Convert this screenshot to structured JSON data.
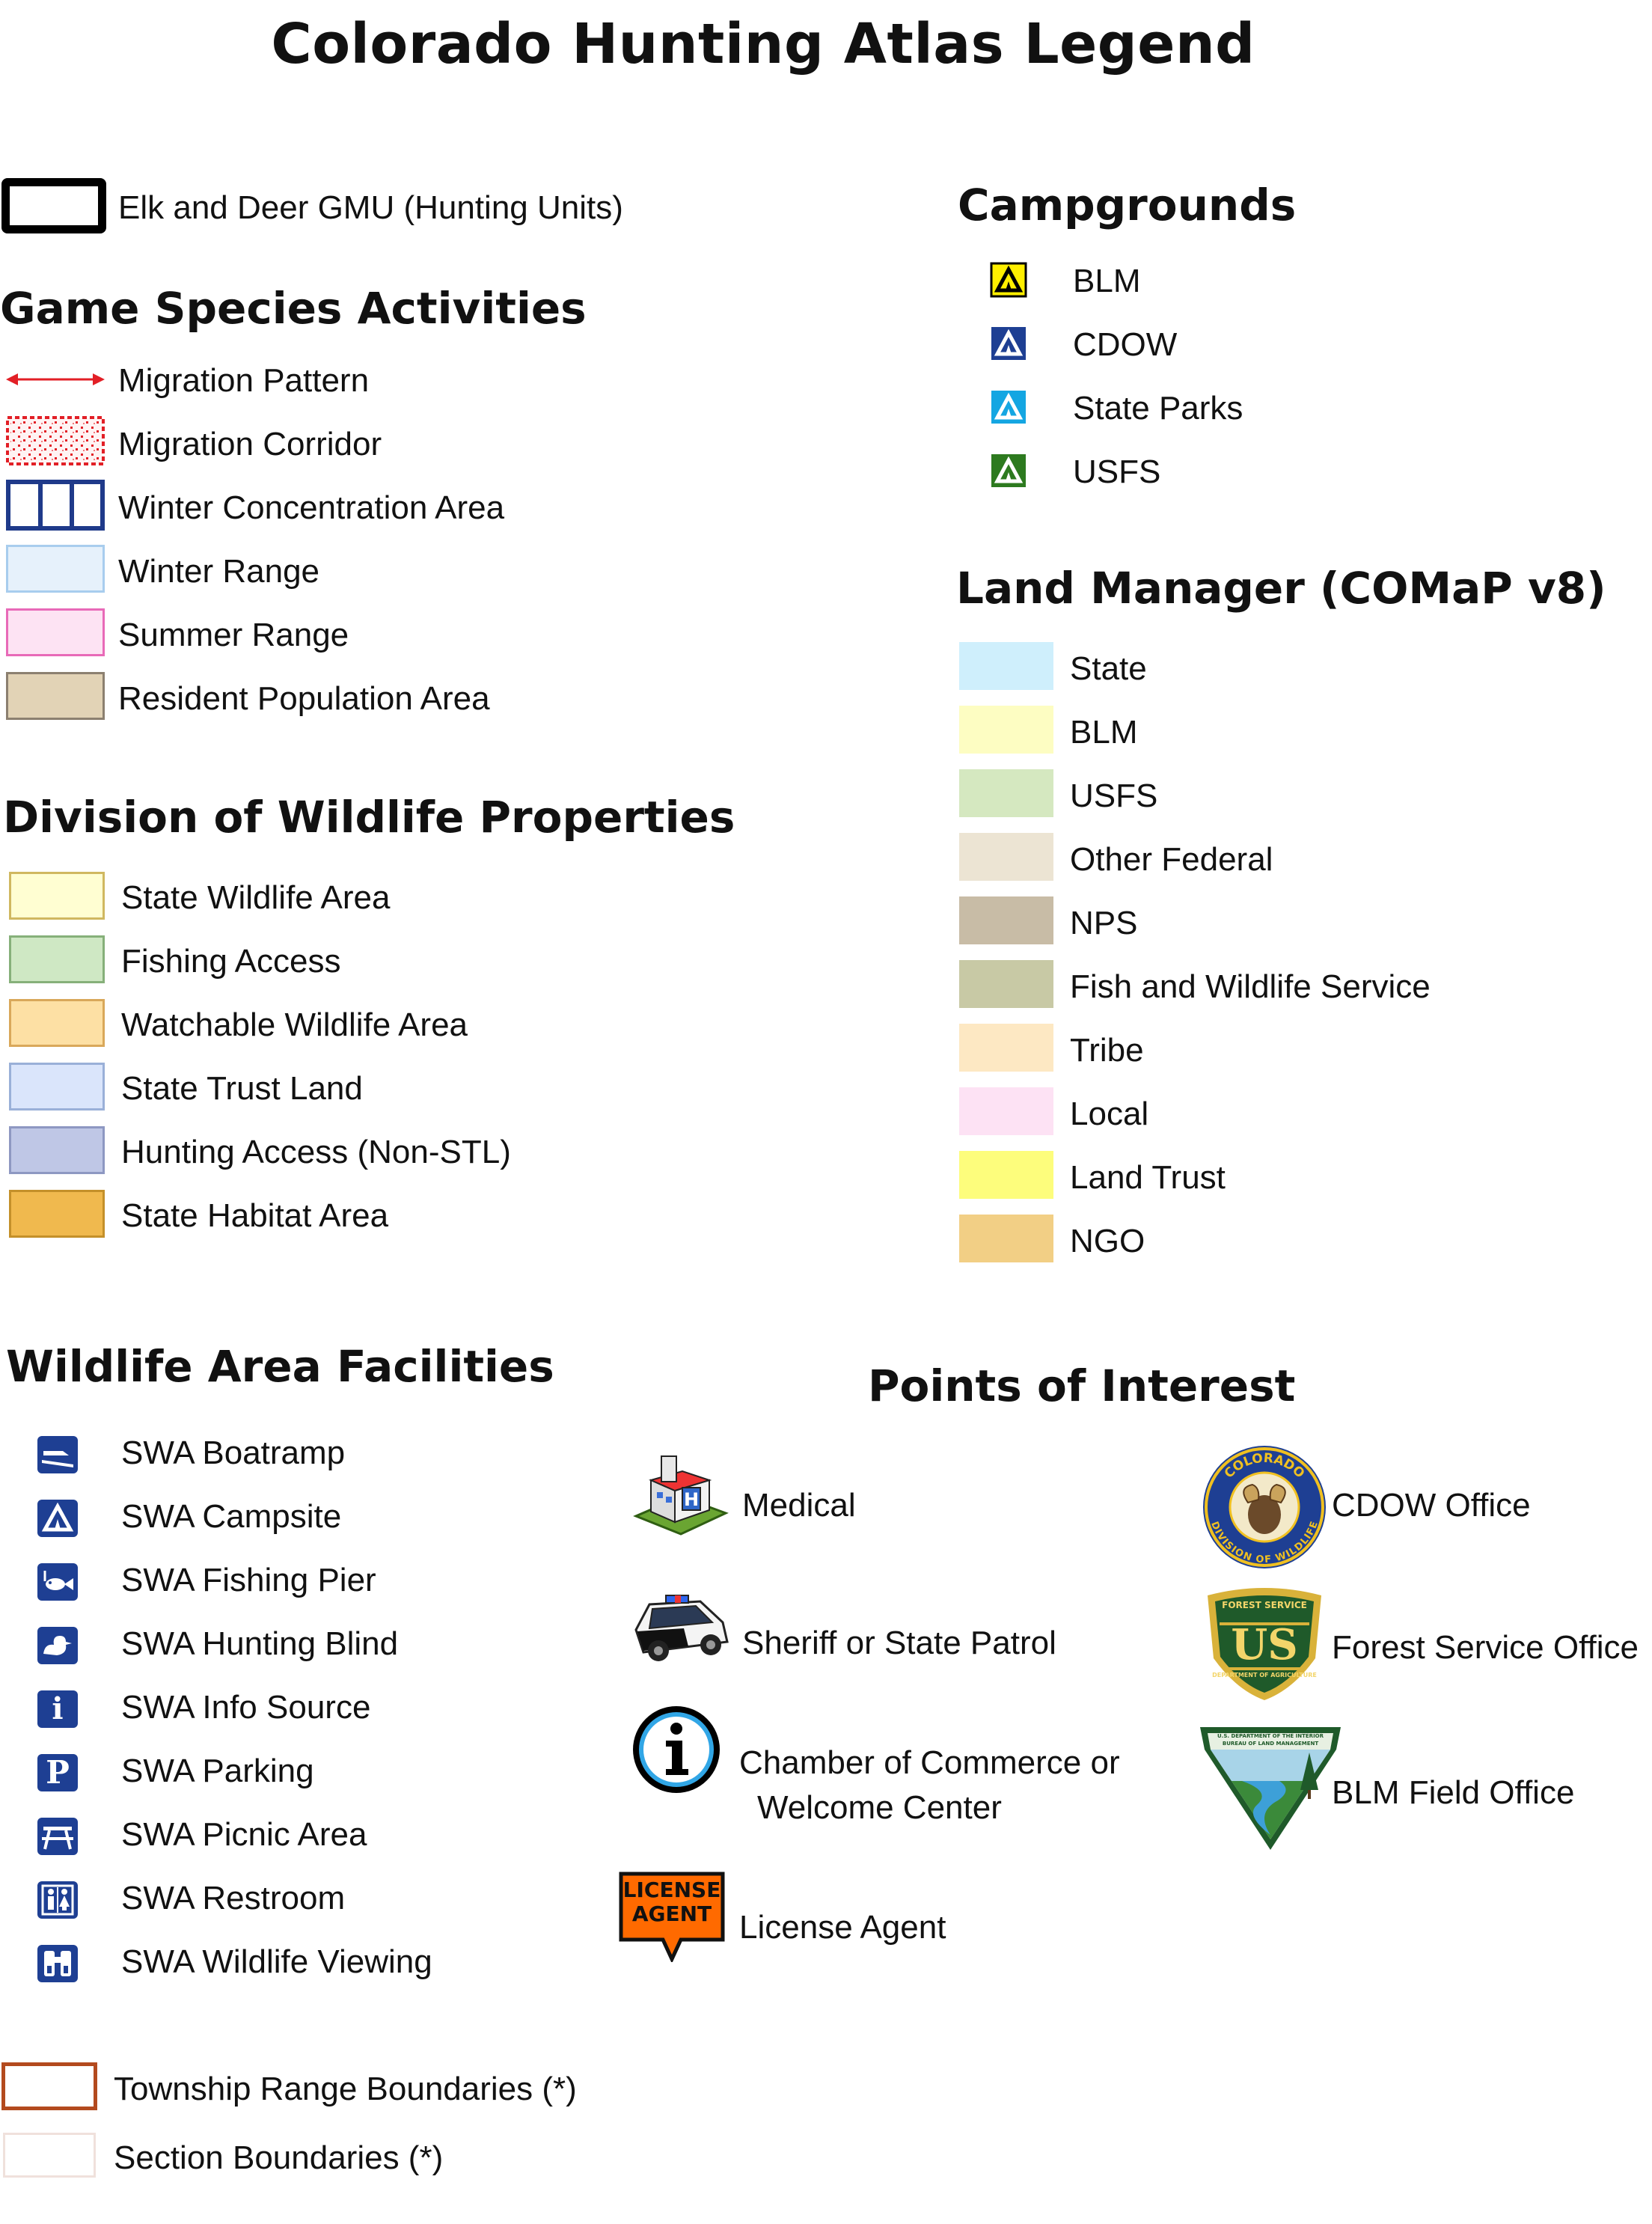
{
  "title": "Colorado Hunting Atlas Legend",
  "gmu": {
    "label": "Elk and Deer GMU (Hunting Units)"
  },
  "game_species": {
    "heading": "Game Species Activities",
    "items": [
      {
        "label": "Migration Pattern",
        "symbol": "red-double-arrow",
        "color": "#e21f26"
      },
      {
        "label": "Migration Corridor",
        "symbol": "red-stipple",
        "color": "#e21f26"
      },
      {
        "label": "Winter Concentration Area",
        "symbol": "blue-hatch",
        "color": "#1f3a8a"
      },
      {
        "label": "Winter Range",
        "fill": "#e6f1fb",
        "stroke": "#a8cdee"
      },
      {
        "label": "Summer Range",
        "fill": "#fde3f3",
        "stroke": "#e86ab8"
      },
      {
        "label": "Resident Population Area",
        "fill": "#e2d3b6",
        "stroke": "#8c8070"
      }
    ]
  },
  "dow_properties": {
    "heading": "Division of Wildlife Properties",
    "items": [
      {
        "label": "State Wildlife Area",
        "fill": "#fffed2",
        "stroke": "#d0b860"
      },
      {
        "label": "Fishing Access",
        "fill": "#cfe8c4",
        "stroke": "#86b07a"
      },
      {
        "label": "Watchable Wildlife Area",
        "fill": "#fde0a4",
        "stroke": "#d9a85a"
      },
      {
        "label": "State Trust Land",
        "fill": "#dae5fb",
        "stroke": "#9ab0d8"
      },
      {
        "label": "Hunting Access (Non-STL)",
        "fill": "#bfc7e6",
        "stroke": "#8e98c2"
      },
      {
        "label": "State Habitat Area",
        "fill": "#f0b94e",
        "stroke": "#c4902a"
      }
    ]
  },
  "campgrounds": {
    "heading": "Campgrounds",
    "items": [
      {
        "label": "BLM",
        "fill": "#ffef00",
        "glyph": "#000000"
      },
      {
        "label": "CDOW",
        "fill": "#1e3f93",
        "glyph": "#ffffff"
      },
      {
        "label": "State Parks",
        "fill": "#14a6e2",
        "glyph": "#ffffff"
      },
      {
        "label": "USFS",
        "fill": "#2d7a1f",
        "glyph": "#ffffff"
      }
    ]
  },
  "land_manager": {
    "heading": "Land Manager (COMaP v8)",
    "items": [
      {
        "label": "State",
        "fill": "#cfeffc"
      },
      {
        "label": "BLM",
        "fill": "#fdfdc2"
      },
      {
        "label": "USFS",
        "fill": "#d5e8c0"
      },
      {
        "label": "Other Federal",
        "fill": "#ece4d3"
      },
      {
        "label": "NPS",
        "fill": "#c8bca6"
      },
      {
        "label": "Fish and Wildlife Service",
        "fill": "#c8c9a5"
      },
      {
        "label": "Tribe",
        "fill": "#fde8c3"
      },
      {
        "label": "Local",
        "fill": "#fde2f4"
      },
      {
        "label": "Land Trust",
        "fill": "#fdfd7c"
      },
      {
        "label": "NGO",
        "fill": "#f2cf85"
      }
    ]
  },
  "facilities": {
    "heading": "Wildlife Area Facilities",
    "icon_color": "#1e3f93",
    "items": [
      {
        "label": "SWA Boatramp",
        "icon": "boatramp-icon"
      },
      {
        "label": "SWA Campsite",
        "icon": "tent-icon"
      },
      {
        "label": "SWA Fishing Pier",
        "icon": "fish-icon"
      },
      {
        "label": "SWA Hunting Blind",
        "icon": "duck-icon"
      },
      {
        "label": "SWA Info Source",
        "icon": "info-icon",
        "glyph": "i"
      },
      {
        "label": "SWA Parking",
        "icon": "parking-icon",
        "glyph": "P"
      },
      {
        "label": "SWA Picnic Area",
        "icon": "picnic-table-icon"
      },
      {
        "label": "SWA Restroom",
        "icon": "restroom-icon"
      },
      {
        "label": "SWA Wildlife Viewing",
        "icon": "binoculars-icon"
      }
    ]
  },
  "poi": {
    "heading": "Points of Interest",
    "left": [
      {
        "label": "Medical",
        "icon": "hospital-building-icon"
      },
      {
        "label": "Sheriff or State Patrol",
        "icon": "police-car-icon"
      },
      {
        "label_line1": "Chamber of Commerce or",
        "label_line2": "Welcome Center",
        "icon": "info-circle-icon"
      },
      {
        "label": "License Agent",
        "icon": "license-agent-sign-icon",
        "sign_line1": "LICENSE",
        "sign_line2": "AGENT"
      }
    ],
    "right": [
      {
        "label": "CDOW Office",
        "icon": "cdow-seal-icon",
        "seal_top": "COLORADO",
        "seal_bottom": "DIVISION OF WILDLIFE"
      },
      {
        "label": "Forest Service Office",
        "icon": "usfs-shield-icon",
        "shield_top": "FOREST SERVICE",
        "shield_mid": "US",
        "shield_bottom": "DEPARTMENT OF AGRICULTURE"
      },
      {
        "label": "BLM Field Office",
        "icon": "blm-shield-icon",
        "shield_top": "U.S. DEPARTMENT OF THE INTERIOR",
        "shield_bottom": "BUREAU OF LAND MANAGEMENT"
      }
    ]
  },
  "boundaries": [
    {
      "label": "Township Range  Boundaries (*)",
      "stroke": "#b34a1e"
    },
    {
      "label": "Section Boundaries (*)",
      "stroke": "#f0e1dc"
    }
  ]
}
